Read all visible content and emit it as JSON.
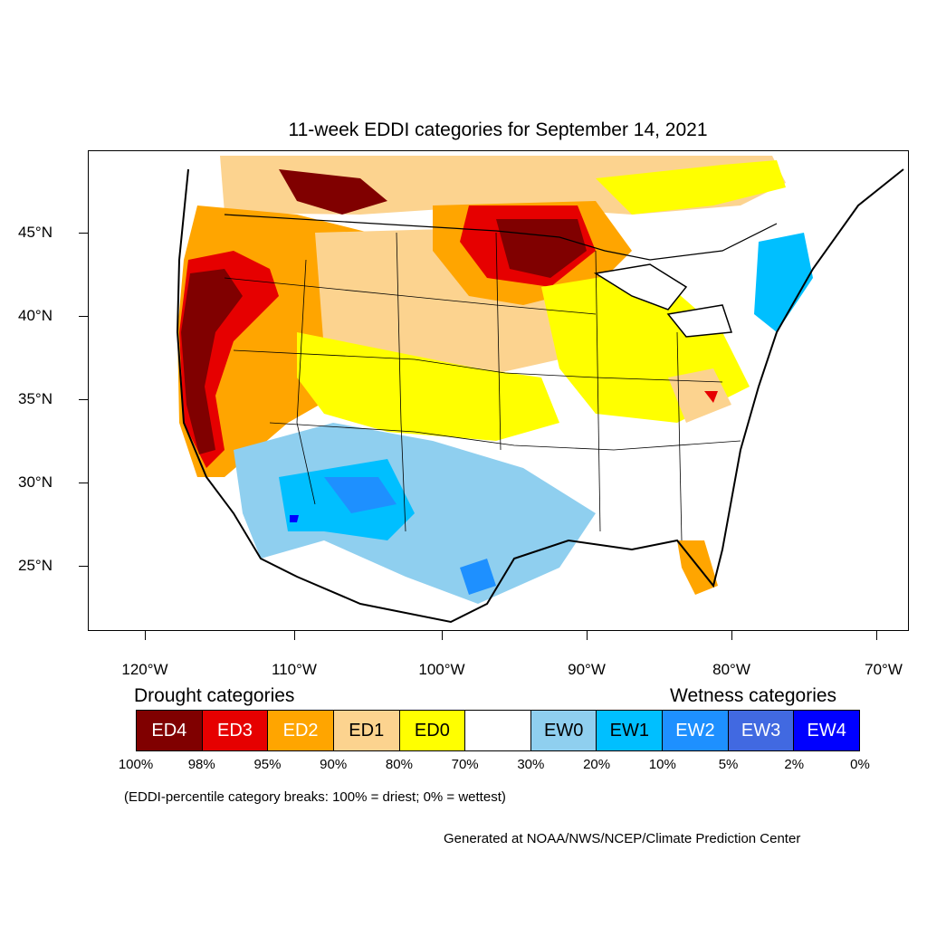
{
  "title": "11-week EDDI categories for September 14, 2021",
  "lat_labels": [
    "45°N",
    "40°N",
    "35°N",
    "30°N",
    "25°N"
  ],
  "lon_labels": [
    "120°W",
    "110°W",
    "100°W",
    "90°W",
    "80°W",
    "70°W"
  ],
  "legend": {
    "drought_heading": "Drought categories",
    "wetness_heading": "Wetness categories",
    "categories": [
      {
        "label": "ED4",
        "color": "#800000",
        "text_color": "#ffffff"
      },
      {
        "label": "ED3",
        "color": "#e60000",
        "text_color": "#ffffff"
      },
      {
        "label": "ED2",
        "color": "#ffa500",
        "text_color": "#ffffff"
      },
      {
        "label": "ED1",
        "color": "#fcd38f",
        "text_color": "#000000"
      },
      {
        "label": "ED0",
        "color": "#ffff00",
        "text_color": "#000000"
      },
      {
        "label": "",
        "color": "#ffffff",
        "text_color": "#000000"
      },
      {
        "label": "EW0",
        "color": "#8fcfef",
        "text_color": "#000000"
      },
      {
        "label": "EW1",
        "color": "#00bfff",
        "text_color": "#000000"
      },
      {
        "label": "EW2",
        "color": "#1e90ff",
        "text_color": "#ffffff"
      },
      {
        "label": "EW3",
        "color": "#4169e1",
        "text_color": "#ffffff"
      },
      {
        "label": "EW4",
        "color": "#0000ff",
        "text_color": "#ffffff"
      }
    ],
    "percentiles": [
      "100%",
      "98%",
      "95%",
      "90%",
      "80%",
      "70%",
      "30%",
      "20%",
      "10%",
      "5%",
      "2%",
      "0%"
    ]
  },
  "note": "(EDDI-percentile category breaks: 100% = driest; 0% = wettest)",
  "credit": "Generated at NOAA/NWS/NCEP/Climate Prediction Center"
}
